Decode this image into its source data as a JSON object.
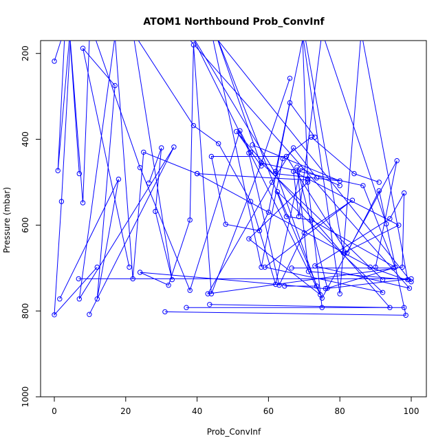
{
  "chart_data": {
    "type": "line",
    "title": "ATOM1 Northbound Prob_ConvInf",
    "xlabel": "Prob_ConvInf",
    "ylabel": "Pressure (mbar)",
    "xlim": [
      0,
      100
    ],
    "ylim": [
      1000,
      170
    ],
    "y_reversed": true,
    "grid": false,
    "xticks": [
      0,
      20,
      40,
      60,
      80,
      100
    ],
    "yticks": [
      200,
      400,
      600,
      800,
      1000
    ],
    "color": "#0000ff",
    "series": [
      {
        "x": [
          0,
          3,
          1,
          5,
          2,
          0,
          12
        ],
        "y": [
          218,
          140,
          473,
          90,
          545,
          809,
          698
        ]
      },
      {
        "x": [
          7,
          4,
          8,
          10,
          24,
          38,
          52,
          55
        ],
        "y": [
          480,
          120,
          548,
          130,
          466,
          752,
          380,
          430
        ]
      },
      {
        "x": [
          1.5,
          18,
          12,
          17,
          8,
          21
        ],
        "y": [
          772,
          493,
          772,
          275,
          188,
          698
        ]
      },
      {
        "x": [
          9.8,
          33.5,
          7,
          17,
          22,
          25,
          40,
          71
        ],
        "y": [
          808,
          418,
          772,
          160,
          725,
          430,
          480,
          495
        ]
      },
      {
        "x": [
          6.8,
          100,
          76,
          24,
          32,
          38,
          39,
          44,
          58,
          66
        ],
        "y": [
          725,
          725,
          748,
          710,
          740,
          588,
          180,
          760,
          455,
          258
        ]
      },
      {
        "x": [
          26.5,
          30,
          28.3,
          33,
          22,
          39,
          46,
          55,
          62,
          69,
          80
        ],
        "y": [
          502,
          420,
          568,
          727,
          150,
          368,
          410,
          545,
          738,
          468,
          508
        ]
      },
      {
        "x": [
          31,
          98.5,
          91,
          82,
          65,
          44,
          48,
          57.5,
          60,
          66,
          73
        ],
        "y": [
          802,
          810,
          520,
          665,
          440,
          440,
          598,
          613,
          570,
          315,
          395
        ]
      },
      {
        "x": [
          36,
          99.5,
          73,
          94,
          98,
          97.5,
          43,
          61,
          67,
          73.5
        ],
        "y": [
          150,
          747,
          695,
          585,
          525,
          698,
          760,
          500,
          420,
          490
        ]
      },
      {
        "x": [
          37,
          98,
          75,
          71,
          54.5,
          74.5,
          38,
          62,
          80,
          55.5
        ],
        "y": [
          792,
          792,
          792,
          500,
          632,
          762,
          150,
          480,
          497,
          413
        ]
      },
      {
        "x": [
          40,
          88.5,
          100,
          44,
          58,
          64,
          72,
          84,
          91
        ],
        "y": [
          480,
          698,
          732,
          150,
          698,
          445,
          395,
          480,
          500
        ]
      },
      {
        "x": [
          43.5,
          94,
          51,
          58,
          45,
          65,
          72,
          95.5,
          86.5,
          58,
          92
        ],
        "y": [
          785,
          792,
          382,
          462,
          150,
          580,
          588,
          698,
          508,
          455,
          727
        ]
      },
      {
        "x": [
          54.5,
          63,
          70,
          83.5,
          59,
          92,
          62.5,
          75,
          96,
          90
        ],
        "y": [
          432,
          740,
          618,
          542,
          698,
          757,
          522,
          770,
          450,
          698
        ]
      },
      {
        "x": [
          64.5,
          73.5,
          62,
          70,
          81,
          96.5,
          67,
          68.5,
          75,
          93
        ],
        "y": [
          742,
          742,
          475,
          150,
          665,
          600,
          475,
          580,
          150,
          597
        ]
      },
      {
        "x": [
          71,
          69.5,
          80,
          86,
          99,
          71.2,
          68,
          76.5,
          95,
          66.5
        ],
        "y": [
          492,
          150,
          760,
          150,
          727,
          708,
          465,
          747,
          700,
          700
        ]
      }
    ]
  }
}
